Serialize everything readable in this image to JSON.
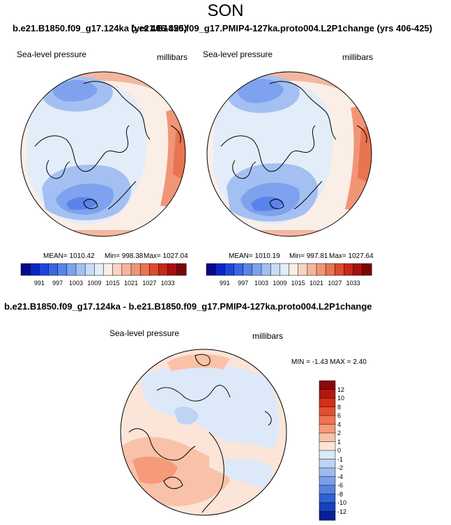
{
  "title": "SON",
  "case_title_left": "b.e21.B1850.f09_g17.124ka (yrs 406-425)",
  "case_title_right": "b.e21.B1850.f09_g17.PMIP4-127ka.proto004.L2P1change (yrs 406-425)",
  "diff_title": "b.e21.B1850.f09_g17.124ka - b.e21.B1850.f09_g17.PMIP4-127ka.proto004.L2P1change",
  "panels": [
    {
      "variable": "Sea-level pressure",
      "units": "millibars",
      "mean_text": "MEAN= 1010.42",
      "min_text": "Min= 998.38",
      "max_text": "Max= 1027.04"
    },
    {
      "variable": "Sea-level pressure",
      "units": "millibars",
      "mean_text": "MEAN= 1010.19",
      "min_text": "Min= 997.81",
      "max_text": "Max= 1027.64"
    }
  ],
  "diff_panel": {
    "variable": "Sea-level pressure",
    "units": "millibars",
    "minmax_text": "MIN =  -1.43 MAX =   2.40"
  },
  "abs_colorbar": {
    "tick_labels": [
      "991",
      "997",
      "1003",
      "1009",
      "1015",
      "1021",
      "1027",
      "1033"
    ],
    "colors": [
      "#08088c",
      "#0b24c8",
      "#1f45de",
      "#3b66e4",
      "#5a84ea",
      "#7ea2ee",
      "#a4c0f2",
      "#c9dcf7",
      "#e3edf9",
      "#fbeee6",
      "#f8d4c2",
      "#f5b69c",
      "#f19577",
      "#ea7350",
      "#dd4c2d",
      "#c8271a",
      "#a80f0f",
      "#7a0505"
    ]
  },
  "diff_colorbar": {
    "tick_labels": [
      "12",
      "10",
      "8",
      "6",
      "4",
      "2",
      "1",
      "0",
      "-1",
      "-2",
      "-4",
      "-6",
      "-8",
      "-10",
      "-12"
    ],
    "colors": [
      "#8a0808",
      "#b3180f",
      "#d0301b",
      "#e4502e",
      "#ef7452",
      "#f59a7a",
      "#f9c2a8",
      "#fbe5d8",
      "#dde9f8",
      "#bfd4f3",
      "#9dbbee",
      "#7aa0e8",
      "#5683e0",
      "#3261d5",
      "#1540c0",
      "#0a1f96"
    ]
  }
}
